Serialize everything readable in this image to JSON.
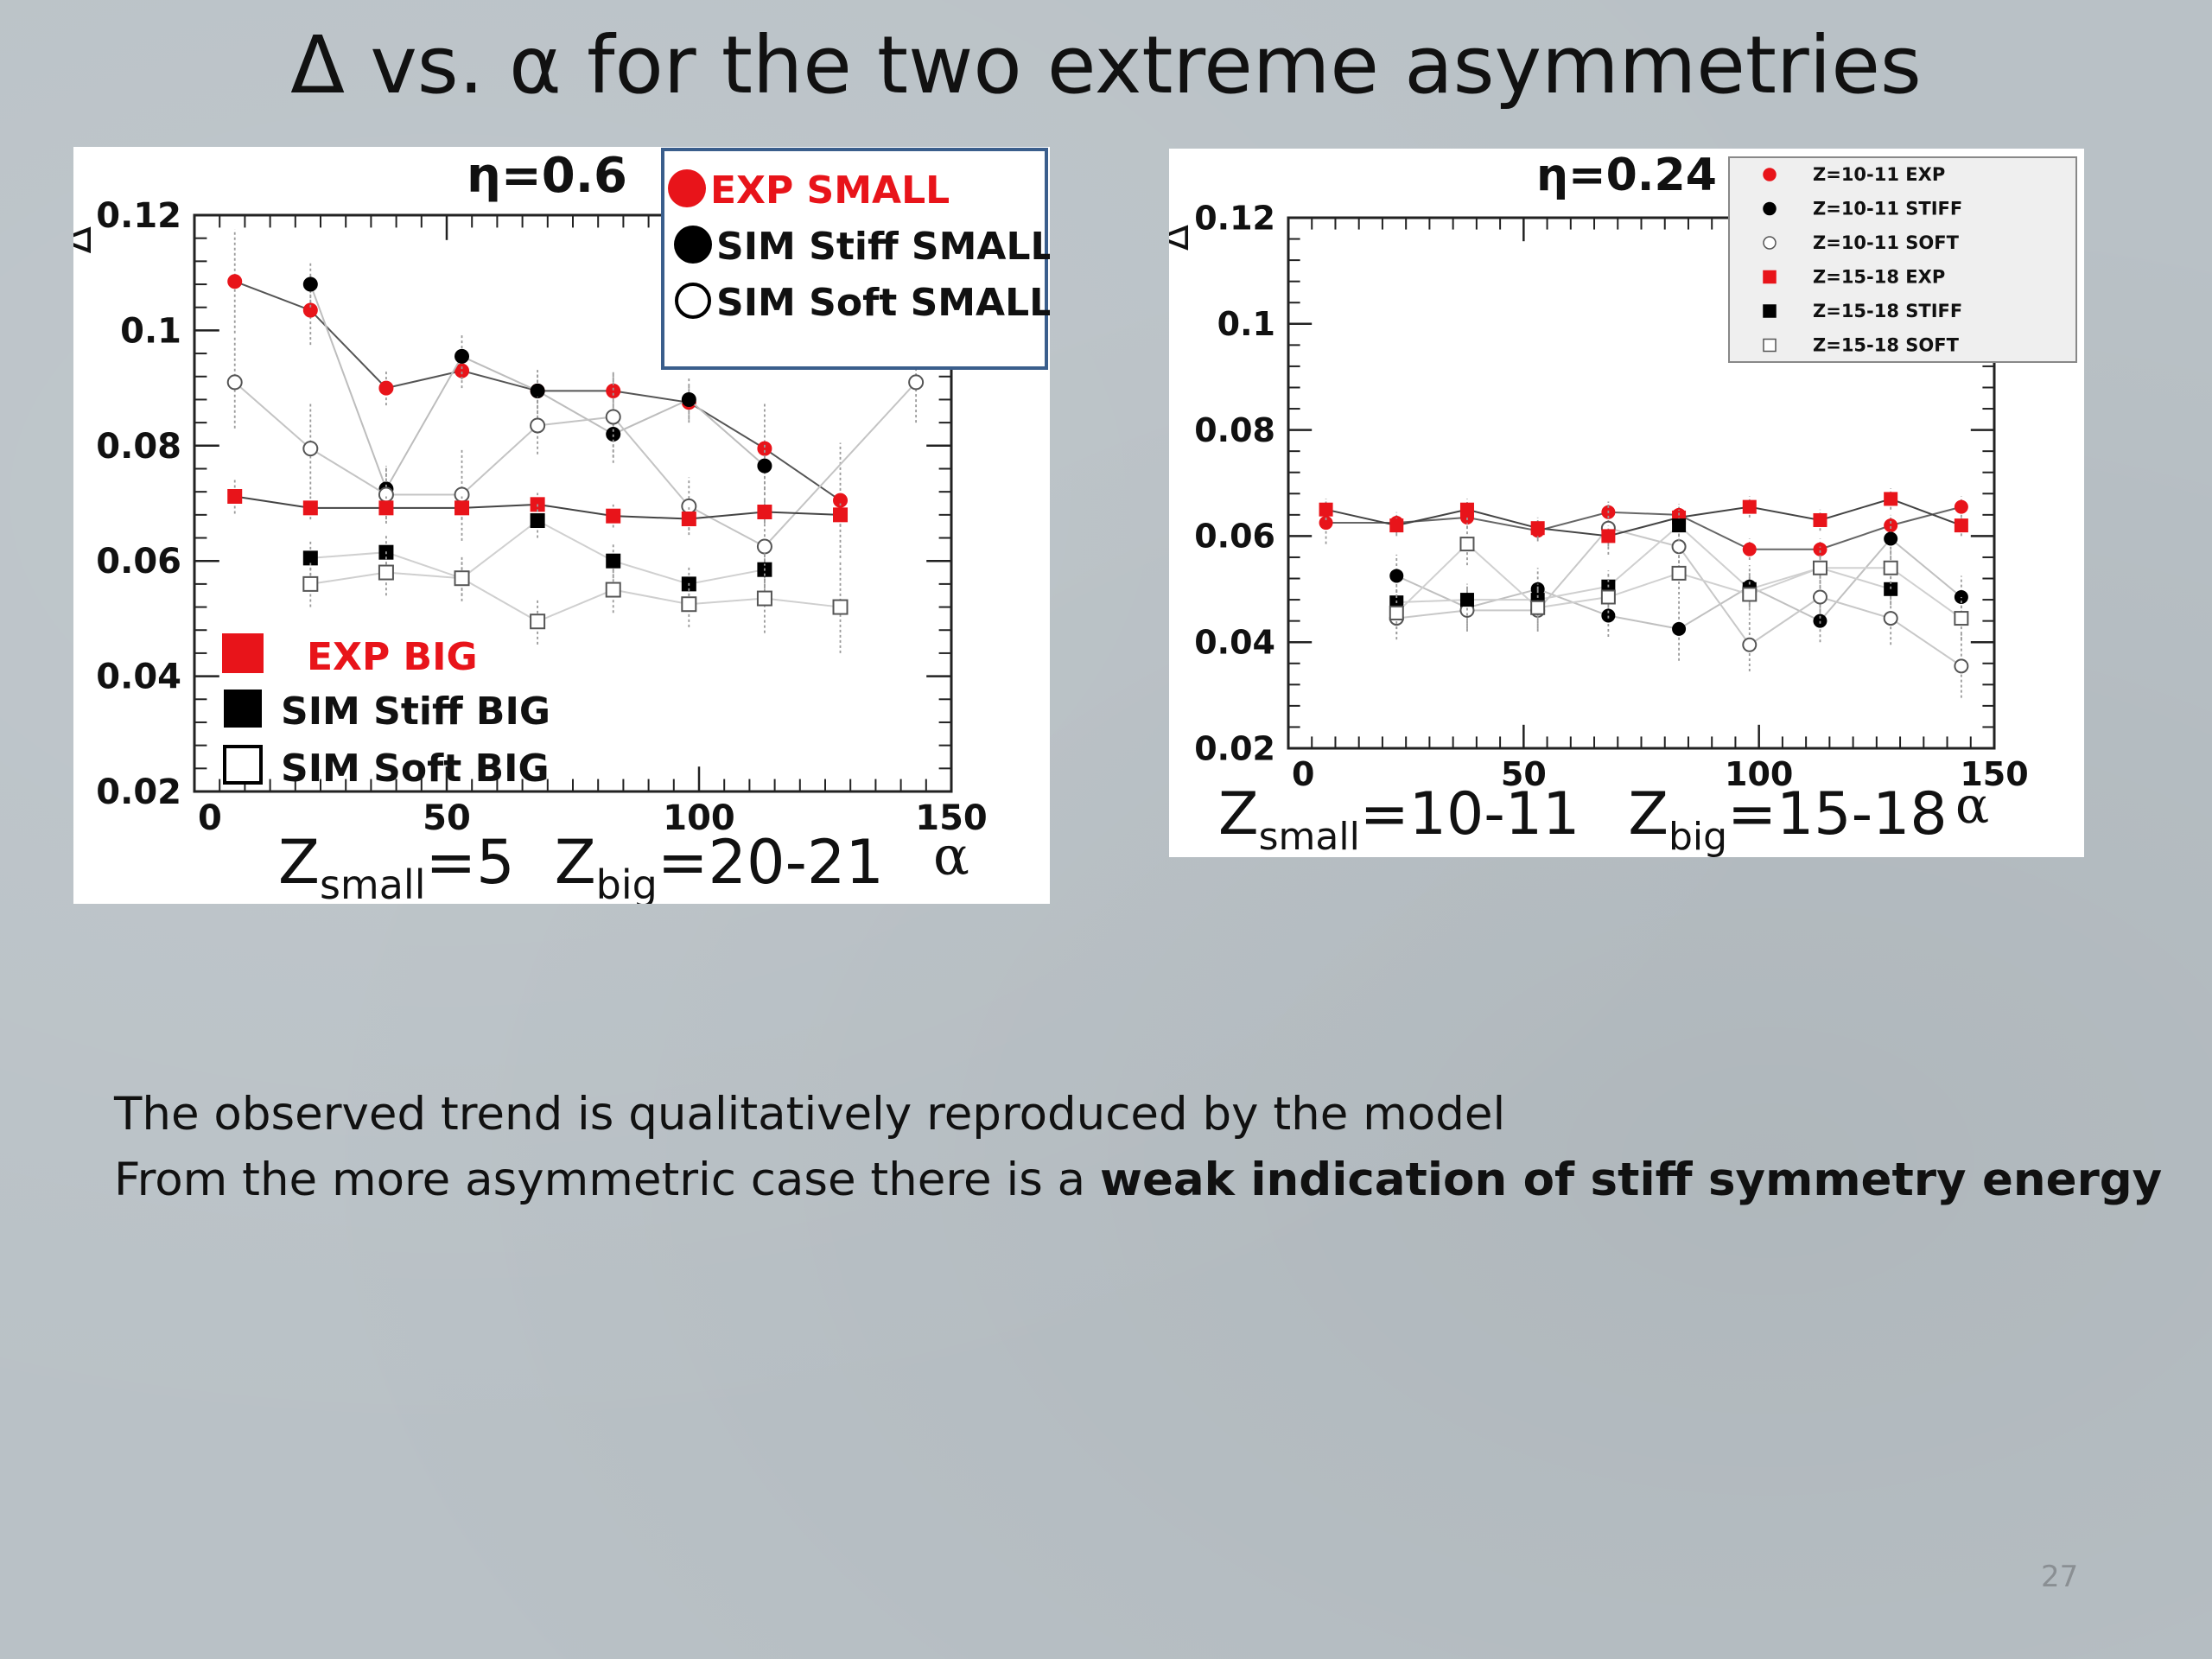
{
  "slide": {
    "title": "Δ vs. α for the two extreme asymmetries",
    "text_line1": "The observed trend is qualitatively reproduced by the model",
    "text_line2_plain": "From the more asymmetric case there is a ",
    "text_line2_bold": "weak indication of stiff symmetry energy",
    "page_number": "27"
  },
  "chart_data": [
    {
      "type": "line",
      "title": "η=0.6",
      "ylabel": "Δ",
      "xlabel": "α",
      "xlim": [
        0,
        150
      ],
      "ylim": [
        0.02,
        0.12
      ],
      "xticks": [
        "0",
        "50",
        "100",
        "150"
      ],
      "yticks": [
        "0.02",
        "0.04",
        "0.06",
        "0.08",
        "0.1",
        "0.12"
      ],
      "annotation": {
        "z_small_prefix": "Z",
        "z_small_sub": "small",
        "z_small_value": "=5",
        "z_big_prefix": "Z",
        "z_big_sub": "big",
        "z_big_value": "=20-21"
      },
      "legend_small": [
        "EXP SMALL",
        "SIM Stiff SMALL",
        "SIM Soft SMALL"
      ],
      "legend_big": [
        "EXP BIG",
        "SIM Stiff BIG",
        "SIM Soft BIG"
      ],
      "series": [
        {
          "name": "EXP SMALL",
          "marker": "circle",
          "fill": "#e8141a",
          "stroke": "#e8141a",
          "line": "#555555",
          "x": [
            8,
            23,
            38,
            53,
            68,
            83,
            98,
            113,
            128
          ],
          "y": [
            0.1085,
            0.1035,
            0.09,
            0.093,
            0.0895,
            0.0895,
            0.0875,
            0.0795,
            0.0705
          ],
          "err": [
            0.009,
            0.006,
            0.003,
            0.003,
            0.003,
            0.003,
            0.003,
            0.008,
            0.01
          ]
        },
        {
          "name": "SIM Stiff SMALL",
          "marker": "circle",
          "fill": "#000000",
          "stroke": "#000000",
          "line": "#bdbdbd",
          "x": [
            23,
            38,
            53,
            68,
            83,
            98,
            113
          ],
          "y": [
            0.108,
            0.0725,
            0.0955,
            0.0895,
            0.082,
            0.088,
            0.0765
          ],
          "err": [
            0.004,
            0.004,
            0.004,
            0.004,
            0.004,
            0.004,
            0.004
          ]
        },
        {
          "name": "SIM Soft SMALL",
          "marker": "circle",
          "fill": "#ffffff",
          "stroke": "#555555",
          "line": "#c4c4c4",
          "x": [
            8,
            23,
            38,
            53,
            68,
            83,
            98,
            113,
            143
          ],
          "y": [
            0.091,
            0.0795,
            0.0715,
            0.0715,
            0.0835,
            0.085,
            0.0695,
            0.0625,
            0.091
          ],
          "err": [
            0.008,
            0.008,
            0.005,
            0.008,
            0.005,
            0.008,
            0.005,
            0.01,
            0.007
          ]
        },
        {
          "name": "EXP BIG",
          "marker": "square",
          "fill": "#e8141a",
          "stroke": "#e8141a",
          "line": "#444444",
          "x": [
            8,
            23,
            38,
            53,
            68,
            83,
            98,
            113,
            128
          ],
          "y": [
            0.0712,
            0.0692,
            0.0692,
            0.0692,
            0.0698,
            0.0678,
            0.0673,
            0.0685,
            0.068
          ],
          "err": [
            0.003,
            0.002,
            0.002,
            0.002,
            0.002,
            0.002,
            0.002,
            0.002,
            0.002
          ]
        },
        {
          "name": "SIM Stiff BIG",
          "marker": "square",
          "fill": "#000000",
          "stroke": "#000000",
          "line": "#d0d0d0",
          "x": [
            23,
            38,
            53,
            68,
            83,
            98,
            113
          ],
          "y": [
            0.0605,
            0.0615,
            0.057,
            0.067,
            0.06,
            0.056,
            0.0585
          ],
          "err": [
            0.003,
            0.003,
            0.003,
            0.003,
            0.003,
            0.003,
            0.003
          ]
        },
        {
          "name": "SIM Soft BIG",
          "marker": "square",
          "fill": "#ffffff",
          "stroke": "#555555",
          "line": "#cfcfcf",
          "x": [
            23,
            38,
            53,
            68,
            83,
            98,
            113,
            128
          ],
          "y": [
            0.056,
            0.058,
            0.057,
            0.0495,
            0.055,
            0.0525,
            0.0535,
            0.052
          ],
          "err": [
            0.004,
            0.004,
            0.004,
            0.004,
            0.004,
            0.004,
            0.006,
            0.008
          ]
        }
      ]
    },
    {
      "type": "line",
      "title": "η=0.24",
      "ylabel": "Δ",
      "xlabel": "α",
      "xlim": [
        0,
        150
      ],
      "ylim": [
        0.02,
        0.12
      ],
      "xticks": [
        "0",
        "50",
        "100",
        "150"
      ],
      "yticks": [
        "0.02",
        "0.04",
        "0.06",
        "0.08",
        "0.1",
        "0.12"
      ],
      "annotation": {
        "z_small_prefix": "Z",
        "z_small_sub": "small",
        "z_small_value": "=10-11",
        "z_big_prefix": "Z",
        "z_big_sub": "big",
        "z_big_value": "=15-18"
      },
      "legend": [
        "Z=10-11 EXP",
        "Z=10-11 STIFF",
        "Z=10-11 SOFT",
        "Z=15-18 EXP",
        "Z=15-18 STIFF",
        "Z=15-18 SOFT"
      ],
      "series": [
        {
          "name": "Z=10-11 EXP",
          "marker": "circle",
          "fill": "#e8141a",
          "stroke": "#e8141a",
          "line": "#666666",
          "x": [
            8,
            23,
            38,
            53,
            68,
            83,
            98,
            113,
            128,
            143
          ],
          "y": [
            0.0625,
            0.0625,
            0.0635,
            0.061,
            0.0645,
            0.064,
            0.0575,
            0.0575,
            0.062,
            0.0655
          ],
          "err": [
            0.004,
            0.002,
            0.002,
            0.002,
            0.002,
            0.002,
            0.002,
            0.002,
            0.002,
            0.002
          ]
        },
        {
          "name": "Z=10-11 STIFF",
          "marker": "circle",
          "fill": "#000000",
          "stroke": "#000000",
          "line": "#c0c0c0",
          "x": [
            23,
            38,
            53,
            68,
            83,
            98,
            113,
            128,
            143
          ],
          "y": [
            0.0525,
            0.0465,
            0.05,
            0.045,
            0.0425,
            0.0505,
            0.044,
            0.0595,
            0.0485
          ],
          "err": [
            0.004,
            0.004,
            0.004,
            0.004,
            0.006,
            0.004,
            0.004,
            0.004,
            0.004
          ]
        },
        {
          "name": "Z=10-11 SOFT",
          "marker": "circle",
          "fill": "#ffffff",
          "stroke": "#555555",
          "line": "#c8c8c8",
          "x": [
            23,
            38,
            53,
            68,
            83,
            98,
            113,
            128,
            143
          ],
          "y": [
            0.0445,
            0.046,
            0.046,
            0.0615,
            0.058,
            0.0395,
            0.0485,
            0.0445,
            0.0355
          ],
          "err": [
            0.004,
            0.004,
            0.004,
            0.005,
            0.004,
            0.005,
            0.005,
            0.005,
            0.006
          ]
        },
        {
          "name": "Z=15-18 EXP",
          "marker": "square",
          "fill": "#e8141a",
          "stroke": "#e8141a",
          "line": "#444444",
          "x": [
            8,
            23,
            38,
            53,
            68,
            83,
            98,
            113,
            128,
            143
          ],
          "y": [
            0.065,
            0.062,
            0.065,
            0.0615,
            0.06,
            0.0635,
            0.0655,
            0.063,
            0.067,
            0.062
          ],
          "err": [
            0.002,
            0.002,
            0.002,
            0.002,
            0.002,
            0.002,
            0.002,
            0.002,
            0.002,
            0.002
          ]
        },
        {
          "name": "Z=15-18 STIFF",
          "marker": "square",
          "fill": "#000000",
          "stroke": "#000000",
          "line": "#cfcfcf",
          "x": [
            23,
            38,
            53,
            68,
            83,
            98,
            113,
            128
          ],
          "y": [
            0.0475,
            0.048,
            0.048,
            0.0505,
            0.062,
            0.05,
            0.054,
            0.05
          ],
          "err": [
            0.003,
            0.003,
            0.003,
            0.003,
            0.003,
            0.003,
            0.003,
            0.003
          ]
        },
        {
          "name": "Z=15-18 SOFT",
          "marker": "square",
          "fill": "#ffffff",
          "stroke": "#555555",
          "line": "#d0d0d0",
          "x": [
            23,
            38,
            53,
            68,
            83,
            98,
            113,
            128,
            143
          ],
          "y": [
            0.0455,
            0.0585,
            0.0465,
            0.0485,
            0.053,
            0.049,
            0.054,
            0.054,
            0.0445
          ],
          "err": [
            0.004,
            0.004,
            0.004,
            0.004,
            0.004,
            0.004,
            0.004,
            0.004,
            0.004
          ]
        }
      ]
    }
  ]
}
